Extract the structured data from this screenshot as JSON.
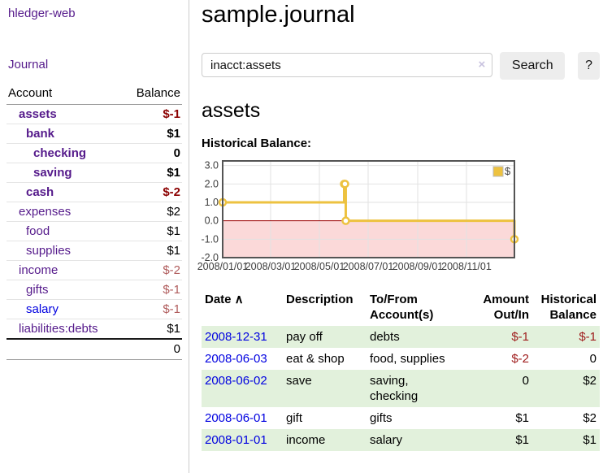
{
  "app": {
    "brand": "hledger-web",
    "nav_journal": "Journal"
  },
  "sidebar": {
    "headers": [
      "Account",
      "Balance"
    ],
    "rows": [
      {
        "account": "assets",
        "depth": 1,
        "strong": true,
        "balance": "$-1"
      },
      {
        "account": "bank",
        "depth": 2,
        "strong": true,
        "balance": "$1"
      },
      {
        "account": "checking",
        "depth": 3,
        "strong": true,
        "balance": "0"
      },
      {
        "account": "saving",
        "depth": 3,
        "strong": true,
        "balance": "$1"
      },
      {
        "account": "cash",
        "depth": 2,
        "strong": true,
        "balance": "$-2"
      },
      {
        "account": "expenses",
        "depth": 1,
        "strong": false,
        "balance": "$2"
      },
      {
        "account": "food",
        "depth": 2,
        "strong": false,
        "balance": "$1"
      },
      {
        "account": "supplies",
        "depth": 2,
        "strong": false,
        "balance": "$1"
      },
      {
        "account": "income",
        "depth": 1,
        "strong": false,
        "balance": "$-2"
      },
      {
        "account": "gifts",
        "depth": 2,
        "strong": false,
        "balance": "$-1"
      },
      {
        "account": "salary",
        "depth": 2,
        "strong": false,
        "balance": "$-1",
        "unvisited": true
      },
      {
        "account": "liabilities:debts",
        "depth": 1,
        "strong": false,
        "balance": "$1"
      }
    ],
    "total": "0"
  },
  "header": {
    "title": "sample.journal"
  },
  "search": {
    "value": "inacct:assets",
    "clear_icon": "×",
    "button_label": "Search",
    "help_label": "?"
  },
  "account_page": {
    "heading": "assets",
    "chart_label": "Historical Balance:"
  },
  "chart_data": {
    "type": "line",
    "title": "Historical Balance:",
    "style": "steps",
    "series": [
      {
        "name": "$",
        "points": [
          [
            "2008-01-01",
            1
          ],
          [
            "2008-06-01",
            2
          ],
          [
            "2008-06-02",
            2
          ],
          [
            "2008-06-03",
            0
          ],
          [
            "2008-12-31",
            -1
          ]
        ]
      }
    ],
    "xlim": [
      "2008-01-01",
      "2008-12-31"
    ],
    "ylim": [
      -2,
      3.25
    ],
    "x_ticks": [
      {
        "date": "2008-01-01",
        "label": "2008/01/01"
      },
      {
        "date": "2008-03-01",
        "label": "2008/03/01"
      },
      {
        "date": "2008-05-01",
        "label": "2008/05/01"
      },
      {
        "date": "2008-07-01",
        "label": "2008/07/01"
      },
      {
        "date": "2008-09-01",
        "label": "2008/09/01"
      },
      {
        "date": "2008-11-01",
        "label": "2008/11/01"
      }
    ],
    "y_ticks": [
      {
        "value": 3,
        "label": "3.0"
      },
      {
        "value": 2,
        "label": "2.0"
      },
      {
        "value": 1,
        "label": "1.0"
      },
      {
        "value": 0,
        "label": "0.0"
      },
      {
        "value": -1,
        "label": "-1.0"
      },
      {
        "value": -2,
        "label": "-2.0"
      }
    ],
    "legend": {
      "position": "top-right",
      "label": "$"
    },
    "grid": true,
    "negative_region_shaded": true
  },
  "register": {
    "columns": [
      {
        "line1": "Date",
        "line2": "",
        "align": "left",
        "sort_arrow": "∧"
      },
      {
        "line1": "Description",
        "line2": "",
        "align": "left"
      },
      {
        "line1": "To/From",
        "line2": "Account(s)",
        "align": "left"
      },
      {
        "line1": "Amount",
        "line2": "Out/In",
        "align": "right"
      },
      {
        "line1": "Historical",
        "line2": "Balance",
        "align": "right"
      }
    ],
    "rows": [
      {
        "date": "2008-12-31",
        "description": "pay off",
        "accounts": "debts",
        "amount": "$-1",
        "balance": "$-1"
      },
      {
        "date": "2008-06-03",
        "description": "eat & shop",
        "accounts": "food, supplies",
        "amount": "$-2",
        "balance": "0"
      },
      {
        "date": "2008-06-02",
        "description": "save",
        "accounts": "saving, checking",
        "amount": "0",
        "balance": "$2"
      },
      {
        "date": "2008-06-01",
        "description": "gift",
        "accounts": "gifts",
        "amount": "$1",
        "balance": "$2"
      },
      {
        "date": "2008-01-01",
        "description": "income",
        "accounts": "salary",
        "amount": "$1",
        "balance": "$1"
      }
    ]
  },
  "colors": {
    "purple": "#551A8B",
    "blue": "#0000E0",
    "negative_strong": "#8B0000",
    "negative_muted": "#B05C5C",
    "register_negative": "#9E1A1A",
    "row_stripe_green": "#E2F1DC",
    "chart_series": "#EDC240",
    "chart_negative_fill": "#FBD9D9",
    "chart_zero_line": "#990000",
    "chart_border": "#545454",
    "chart_grid": "#E2E2E2"
  }
}
